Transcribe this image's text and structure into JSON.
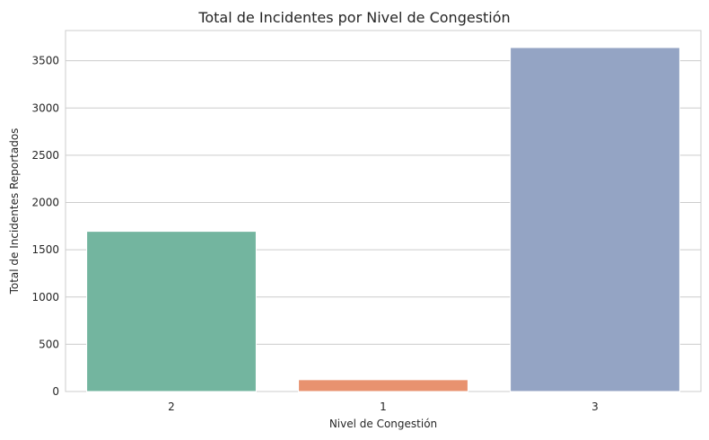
{
  "chart_data": {
    "type": "bar",
    "title": "Total de Incidentes por Nivel de Congestión",
    "xlabel": "Nivel de Congestión",
    "ylabel": "Total de Incidentes Reportados",
    "categories": [
      "2",
      "1",
      "3"
    ],
    "values": [
      1695,
      125,
      3640
    ],
    "colors": [
      "#73b59f",
      "#e8926f",
      "#94a4c4"
    ],
    "ylim": [
      0,
      3820
    ],
    "yticks": [
      0,
      500,
      1000,
      1500,
      2000,
      2500,
      3000,
      3500
    ],
    "grid": true,
    "legend": "none"
  }
}
